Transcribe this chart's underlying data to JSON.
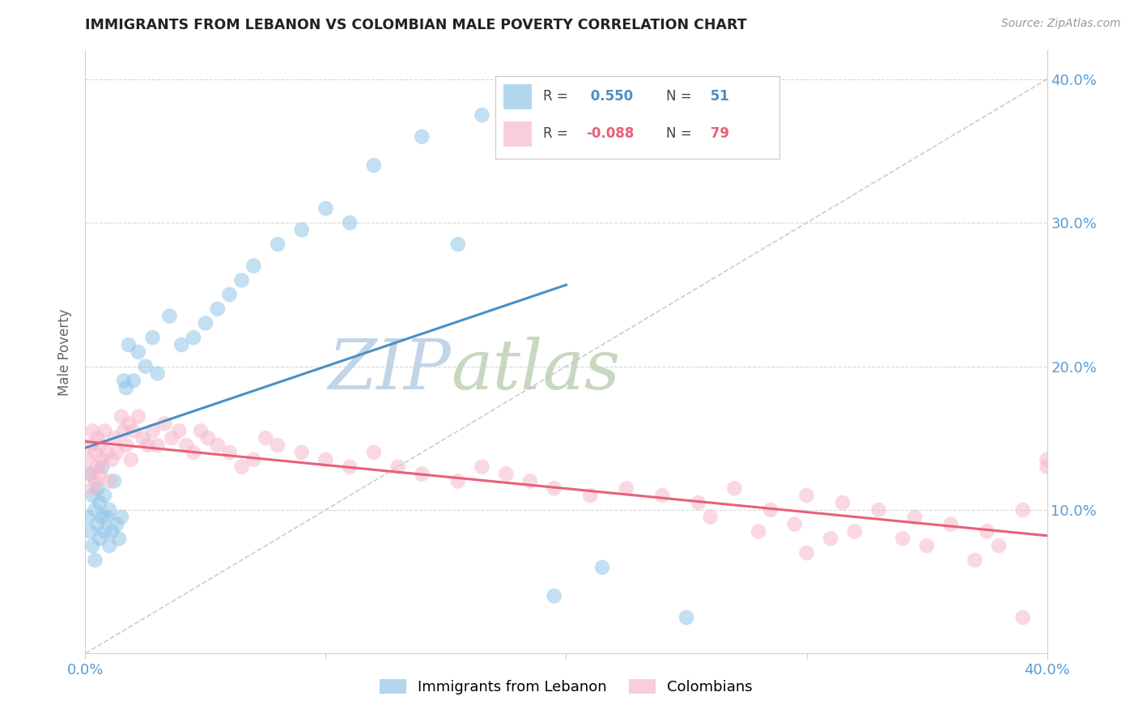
{
  "title": "IMMIGRANTS FROM LEBANON VS COLOMBIAN MALE POVERTY CORRELATION CHART",
  "source": "Source: ZipAtlas.com",
  "ylabel": "Male Poverty",
  "xlim": [
    0.0,
    0.4
  ],
  "ylim": [
    0.0,
    0.42
  ],
  "blue_R": 0.55,
  "blue_N": 51,
  "pink_R": -0.088,
  "pink_N": 79,
  "blue_color": "#92c5e8",
  "pink_color": "#f7b8cc",
  "trend_blue_color": "#4a90c4",
  "trend_pink_color": "#e8607a",
  "trend_gray_color": "#c0c0c0",
  "watermark_Z_color": "#c5d8ec",
  "watermark_IP_color": "#d4c8e0",
  "watermark_atlas_color": "#c8d8c8",
  "title_color": "#222222",
  "axis_label_color": "#5b9bd5",
  "blue_x": [
    0.001,
    0.002,
    0.002,
    0.003,
    0.003,
    0.004,
    0.004,
    0.005,
    0.005,
    0.006,
    0.006,
    0.007,
    0.007,
    0.008,
    0.008,
    0.009,
    0.01,
    0.01,
    0.011,
    0.012,
    0.013,
    0.014,
    0.015,
    0.016,
    0.017,
    0.018,
    0.02,
    0.022,
    0.025,
    0.028,
    0.03,
    0.035,
    0.04,
    0.045,
    0.05,
    0.055,
    0.06,
    0.065,
    0.07,
    0.08,
    0.09,
    0.1,
    0.11,
    0.12,
    0.14,
    0.155,
    0.165,
    0.175,
    0.195,
    0.215,
    0.25
  ],
  "blue_y": [
    0.095,
    0.085,
    0.125,
    0.11,
    0.075,
    0.1,
    0.065,
    0.115,
    0.09,
    0.105,
    0.08,
    0.095,
    0.13,
    0.085,
    0.11,
    0.095,
    0.075,
    0.1,
    0.085,
    0.12,
    0.09,
    0.08,
    0.095,
    0.19,
    0.185,
    0.215,
    0.19,
    0.21,
    0.2,
    0.22,
    0.195,
    0.235,
    0.215,
    0.22,
    0.23,
    0.24,
    0.25,
    0.26,
    0.27,
    0.285,
    0.295,
    0.31,
    0.3,
    0.34,
    0.36,
    0.285,
    0.375,
    0.35,
    0.04,
    0.06,
    0.025
  ],
  "pink_x": [
    0.001,
    0.002,
    0.002,
    0.003,
    0.003,
    0.004,
    0.004,
    0.005,
    0.005,
    0.006,
    0.006,
    0.007,
    0.008,
    0.009,
    0.01,
    0.011,
    0.012,
    0.013,
    0.015,
    0.016,
    0.017,
    0.018,
    0.019,
    0.02,
    0.022,
    0.024,
    0.026,
    0.028,
    0.03,
    0.033,
    0.036,
    0.039,
    0.042,
    0.045,
    0.048,
    0.051,
    0.055,
    0.06,
    0.065,
    0.07,
    0.075,
    0.08,
    0.09,
    0.1,
    0.11,
    0.12,
    0.13,
    0.14,
    0.155,
    0.165,
    0.175,
    0.185,
    0.195,
    0.21,
    0.225,
    0.24,
    0.255,
    0.27,
    0.285,
    0.3,
    0.315,
    0.33,
    0.345,
    0.36,
    0.375,
    0.39,
    0.4,
    0.28,
    0.31,
    0.35,
    0.37,
    0.4,
    0.26,
    0.295,
    0.32,
    0.34,
    0.38,
    0.3,
    0.39
  ],
  "pink_y": [
    0.135,
    0.145,
    0.125,
    0.155,
    0.115,
    0.14,
    0.12,
    0.15,
    0.13,
    0.145,
    0.125,
    0.135,
    0.155,
    0.14,
    0.12,
    0.135,
    0.15,
    0.14,
    0.165,
    0.155,
    0.145,
    0.16,
    0.135,
    0.155,
    0.165,
    0.15,
    0.145,
    0.155,
    0.145,
    0.16,
    0.15,
    0.155,
    0.145,
    0.14,
    0.155,
    0.15,
    0.145,
    0.14,
    0.13,
    0.135,
    0.15,
    0.145,
    0.14,
    0.135,
    0.13,
    0.14,
    0.13,
    0.125,
    0.12,
    0.13,
    0.125,
    0.12,
    0.115,
    0.11,
    0.115,
    0.11,
    0.105,
    0.115,
    0.1,
    0.11,
    0.105,
    0.1,
    0.095,
    0.09,
    0.085,
    0.1,
    0.13,
    0.085,
    0.08,
    0.075,
    0.065,
    0.135,
    0.095,
    0.09,
    0.085,
    0.08,
    0.075,
    0.07,
    0.025
  ]
}
